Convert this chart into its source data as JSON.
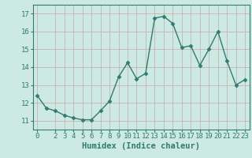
{
  "xlabel": "Humidex (Indice chaleur)",
  "ylabel": "",
  "x_values": [
    0,
    1,
    2,
    3,
    4,
    5,
    6,
    7,
    8,
    9,
    10,
    11,
    12,
    13,
    14,
    15,
    16,
    17,
    18,
    19,
    20,
    21,
    22,
    23
  ],
  "y_values": [
    12.4,
    11.7,
    11.55,
    11.3,
    11.15,
    11.05,
    11.05,
    11.55,
    12.1,
    13.45,
    14.25,
    13.35,
    13.65,
    16.75,
    16.85,
    16.45,
    15.1,
    15.2,
    14.1,
    15.0,
    16.0,
    14.35,
    13.0,
    13.3
  ],
  "line_color": "#2e7d6e",
  "marker": "D",
  "marker_size": 2.5,
  "line_width": 1.0,
  "bg_color": "#cce9e4",
  "grid_color": "#c8a8a8",
  "tick_color": "#2e7d6e",
  "ylim": [
    10.5,
    17.5
  ],
  "xlim": [
    -0.5,
    23.5
  ],
  "yticks": [
    11,
    12,
    13,
    14,
    15,
    16,
    17
  ],
  "xticks": [
    0,
    2,
    3,
    4,
    5,
    6,
    7,
    8,
    9,
    10,
    11,
    12,
    13,
    14,
    15,
    16,
    17,
    18,
    19,
    20,
    21,
    22,
    23
  ],
  "xlabel_fontsize": 7.5,
  "tick_fontsize": 6.5
}
